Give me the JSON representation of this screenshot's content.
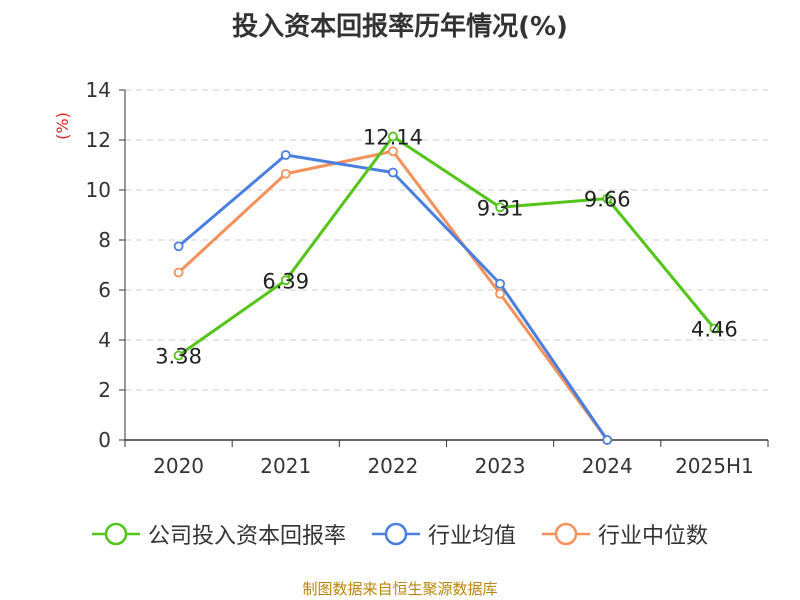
{
  "chart_data": {
    "type": "line",
    "title": "投入资本回报率历年情况(%)",
    "ylabel": "(%)",
    "categories": [
      "2020",
      "2021",
      "2022",
      "2023",
      "2024",
      "2025H1"
    ],
    "ylim": [
      0,
      14
    ],
    "yticks": [
      0,
      2,
      4,
      6,
      8,
      10,
      12,
      14
    ],
    "grid": true,
    "legend_position": "bottom",
    "series": [
      {
        "name": "公司投入资本回报率",
        "color": "#52c41a",
        "values": [
          3.38,
          6.39,
          12.14,
          9.31,
          9.66,
          4.46
        ],
        "labels": [
          "3.38",
          "6.39",
          "12.14",
          "9.31",
          "9.66",
          "4.46"
        ]
      },
      {
        "name": "行业均值",
        "color": "#4a7fdf",
        "values": [
          7.75,
          11.4,
          10.7,
          6.25,
          0.0,
          null
        ]
      },
      {
        "name": "行业中位数",
        "color": "#f4905a",
        "values": [
          6.7,
          10.65,
          11.55,
          5.85,
          0.0,
          null
        ]
      }
    ],
    "source": "制图数据来自恒生聚源数据库"
  }
}
